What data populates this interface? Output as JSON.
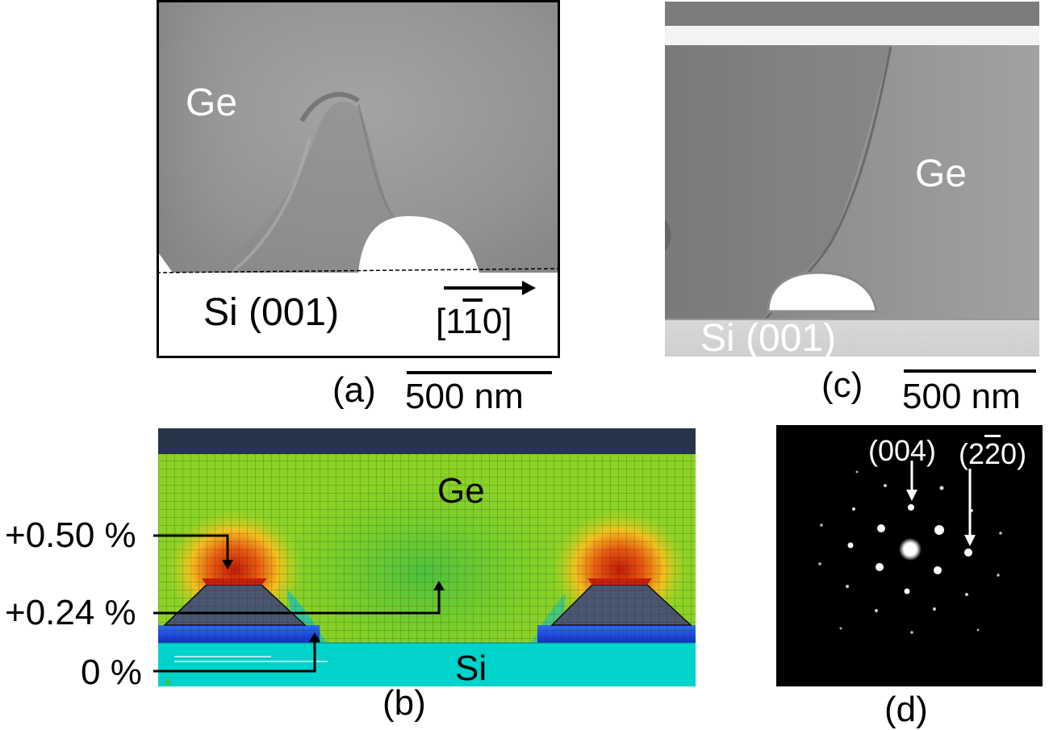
{
  "figure": {
    "panels": [
      {
        "id": "a",
        "caption": "(a)",
        "material_top": "Ge",
        "material_bottom": "Si (001)",
        "direction_label_1": "[1",
        "direction_label_bar": "1",
        "direction_label_2": "0]",
        "scale_bar_label": "500 nm"
      },
      {
        "id": "b",
        "caption": "(b)",
        "material_top": "Ge",
        "material_bottom": "Si",
        "strain_labels": [
          "+0.50 %",
          "+0.24 %",
          "0 %"
        ]
      },
      {
        "id": "c",
        "caption": "(c)",
        "material_top": "Ge",
        "material_bottom": "Si (001)",
        "scale_bar_label": "500 nm"
      },
      {
        "id": "d",
        "caption": "(d)",
        "spot_label_1": "(004)",
        "spot_label_2_a": "(2",
        "spot_label_2_bar": "2",
        "spot_label_2_b": "0)"
      }
    ],
    "colors": {
      "tem_background": "#9a9a9a",
      "fem_ge_green": "#5fc92a",
      "fem_si_cyan": "#00d2cc",
      "fem_cap_navy": "#273449",
      "fem_hotspot_red": "#e03a10",
      "diffraction_bg": "#000000"
    }
  }
}
